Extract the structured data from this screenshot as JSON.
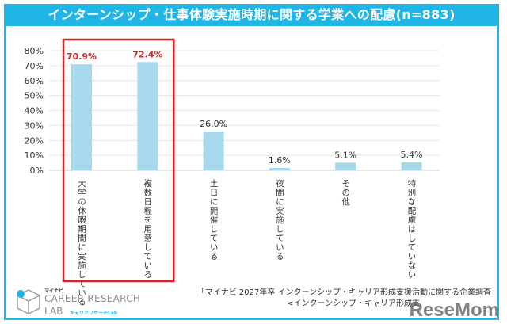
{
  "header": {
    "title": "インターンシップ・仕事体験実施時期に関する学業への配慮(n=883)"
  },
  "chart_data": {
    "type": "bar",
    "title": "インターンシップ・仕事体験実施時期に関する学業への配慮(n=883)",
    "categories": [
      "大学の休暇期間に実施している",
      "複数日程を用意している",
      "土日に開催している",
      "夜間に実施している",
      "その他",
      "特別な配慮はしていない"
    ],
    "values": [
      70.9,
      72.4,
      26.0,
      1.6,
      5.1,
      5.4
    ],
    "labels": [
      "70.9%",
      "72.4%",
      "26.0%",
      "1.6%",
      "5.1%",
      "5.4%"
    ],
    "highlighted": [
      0,
      1
    ],
    "yticks": [
      "0%",
      "10%",
      "20%",
      "30%",
      "40%",
      "50%",
      "60%",
      "70%",
      "80%"
    ],
    "ylim": [
      0,
      80
    ],
    "grid": true,
    "colors": {
      "bar": "#a8d8ec",
      "highlight_label": "#d7262c",
      "highlight_box": "#e02020",
      "frame": "#1fb5e6"
    }
  },
  "source": {
    "line1": "「マイナビ 2027年卒 インターンシップ・キャリア形成支援活動に関する企業調査",
    "line2": "<インターンシップ・キャリア形成支"
  },
  "logo": {
    "small": "マイナビ",
    "main": "CAREER RESEARCH",
    "lab": "LAB",
    "kana": "キャリアリサーチLab"
  },
  "watermark": "ReseMom"
}
